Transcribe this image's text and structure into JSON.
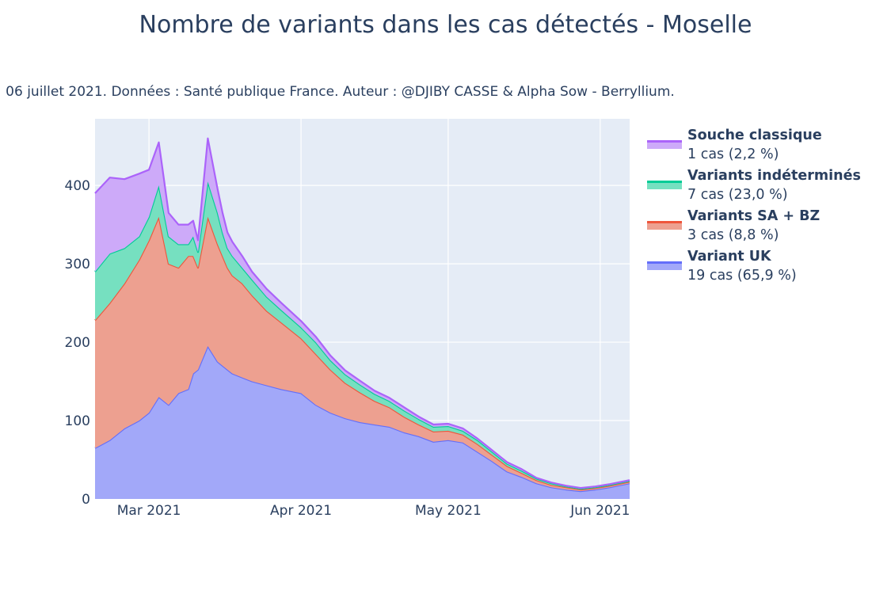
{
  "chart_data": {
    "type": "area",
    "stacked": true,
    "title": "Nombre de variants dans les cas détectés - Moselle",
    "subtitle": "Date : 06 juillet 2021. Données : Santé publique France. Auteur : @DJIBY CASSE & Alpha Sow - Berryllium.",
    "xlabel": "",
    "ylabel": "",
    "x_range": [
      "2021-02-18",
      "2021-06-07"
    ],
    "ylim": [
      0,
      485
    ],
    "y_ticks": [
      0,
      100,
      200,
      300,
      400
    ],
    "x_ticks": [
      {
        "date": "2021-03-01",
        "label": "Mar 2021"
      },
      {
        "date": "2021-04-01",
        "label": "Apr 2021"
      },
      {
        "date": "2021-05-01",
        "label": "May 2021"
      },
      {
        "date": "2021-06-01",
        "label": "Jun 2021"
      }
    ],
    "grid": true,
    "legend_position": "right",
    "x_key_dates": [
      "2021-02-18",
      "2021-02-21",
      "2021-02-24",
      "2021-02-27",
      "2021-03-01",
      "2021-03-03",
      "2021-03-05",
      "2021-03-07",
      "2021-03-09",
      "2021-03-10",
      "2021-03-11",
      "2021-03-13",
      "2021-03-15",
      "2021-03-16",
      "2021-03-17",
      "2021-03-18",
      "2021-03-20",
      "2021-03-22",
      "2021-03-25",
      "2021-03-28",
      "2021-04-01",
      "2021-04-04",
      "2021-04-07",
      "2021-04-10",
      "2021-04-13",
      "2021-04-16",
      "2021-04-19",
      "2021-04-22",
      "2021-04-25",
      "2021-04-28",
      "2021-05-01",
      "2021-05-04",
      "2021-05-07",
      "2021-05-10",
      "2021-05-13",
      "2021-05-16",
      "2021-05-19",
      "2021-05-22",
      "2021-05-25",
      "2021-05-28",
      "2021-05-31",
      "2021-06-03",
      "2021-06-07"
    ],
    "series": [
      {
        "name": "Variant UK",
        "color": "#636efa",
        "fill": "#a2a8f9",
        "values": [
          65,
          75,
          90,
          100,
          110,
          130,
          120,
          135,
          140,
          160,
          165,
          195,
          175,
          170,
          165,
          160,
          155,
          150,
          145,
          140,
          135,
          120,
          110,
          103,
          98,
          95,
          92,
          85,
          80,
          73,
          75,
          72,
          60,
          48,
          35,
          28,
          20,
          15,
          12,
          10,
          12,
          15,
          20
        ]
      },
      {
        "name": "Variants SA + BZ",
        "color": "#ef553b",
        "fill": "#eda090",
        "values": [
          163,
          175,
          185,
          205,
          220,
          230,
          180,
          160,
          170,
          150,
          130,
          165,
          150,
          140,
          130,
          125,
          120,
          110,
          95,
          85,
          70,
          65,
          55,
          45,
          38,
          30,
          25,
          20,
          15,
          13,
          12,
          10,
          10,
          8,
          7,
          5,
          4,
          3,
          3,
          2,
          2,
          2,
          2
        ]
      },
      {
        "name": "Variants indéterminés",
        "color": "#00cc96",
        "fill": "#76e0c0",
        "values": [
          62,
          63,
          45,
          30,
          30,
          40,
          35,
          30,
          15,
          25,
          20,
          45,
          40,
          30,
          25,
          25,
          20,
          20,
          18,
          16,
          14,
          15,
          12,
          11,
          10,
          9,
          8,
          8,
          7,
          6,
          6,
          5,
          5,
          4,
          3,
          3,
          2,
          2,
          1,
          1,
          1,
          1,
          1
        ]
      },
      {
        "name": "Souche classique",
        "color": "#ab63fa",
        "fill": "#cdaaf9",
        "values": [
          100,
          97,
          88,
          80,
          60,
          55,
          30,
          25,
          25,
          20,
          15,
          55,
          30,
          25,
          20,
          18,
          15,
          10,
          10,
          9,
          8,
          7,
          6,
          5,
          5,
          4,
          4,
          4,
          3,
          3,
          3,
          3,
          2,
          2,
          2,
          2,
          1,
          1,
          1,
          1,
          1,
          1,
          1
        ]
      }
    ]
  },
  "legend": [
    {
      "name": "Souche classique",
      "detail": "1 cas (2,2 %)",
      "color": "#ab63fa",
      "fill": "#cdaaf9"
    },
    {
      "name": "Variants indéterminés",
      "detail": "7 cas (23,0 %)",
      "color": "#00cc96",
      "fill": "#76e0c0"
    },
    {
      "name": "Variants SA + BZ",
      "detail": "3 cas (8,8 %)",
      "color": "#ef553b",
      "fill": "#eda090"
    },
    {
      "name": "Variant UK",
      "detail": "19 cas (65,9 %)",
      "color": "#636efa",
      "fill": "#a2a8f9"
    }
  ]
}
